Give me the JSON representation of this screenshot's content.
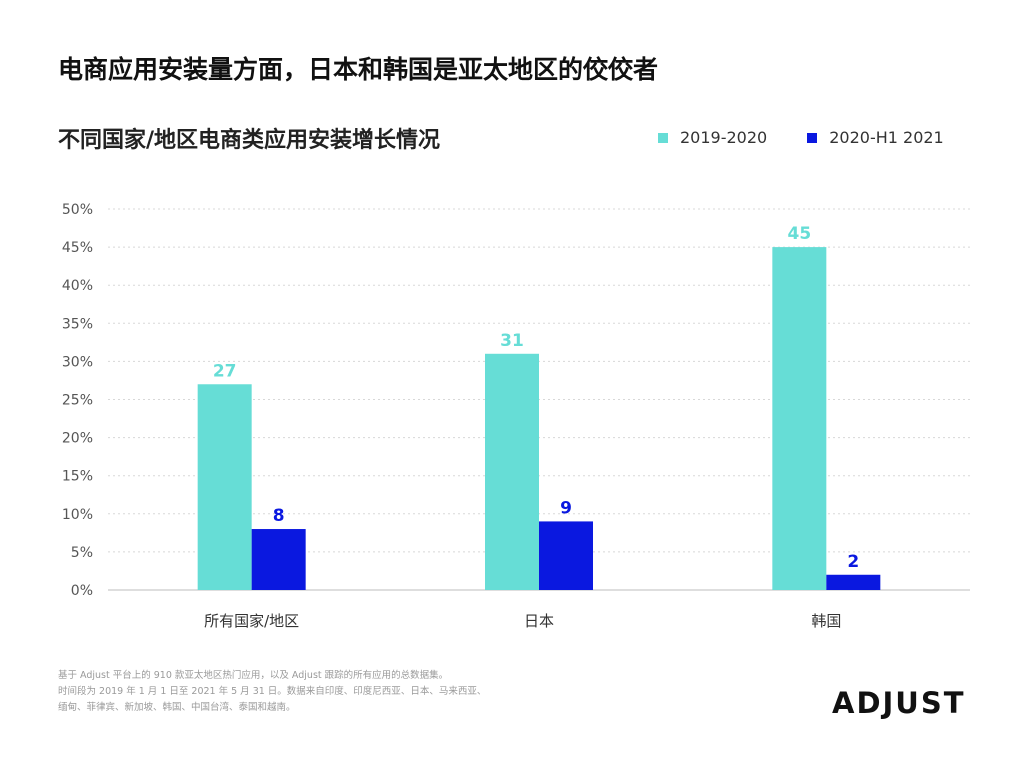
{
  "headline": "电商应用安装量方面，日本和韩国是亚太地区的佼佼者",
  "chart_data": {
    "type": "bar",
    "title": "不同国家/地区电商类应用安装增长情况",
    "categories": [
      "所有国家/地区",
      "日本",
      "韩国"
    ],
    "series": [
      {
        "name": "2019-2020",
        "values": [
          27,
          31,
          45
        ],
        "color": "#66DDD6"
      },
      {
        "name": "2020-H1 2021",
        "values": [
          8,
          9,
          2
        ],
        "color": "#0A18E0"
      }
    ],
    "ylim": [
      0,
      50
    ],
    "yticks": [
      "0%",
      "5%",
      "10%",
      "15%",
      "20%",
      "25%",
      "30%",
      "35%",
      "40%",
      "45%",
      "50%"
    ],
    "grid": true,
    "legend_position": "top-right",
    "xlabel": "",
    "ylabel": ""
  },
  "footnote": [
    "基于 Adjust 平台上的 910 款亚太地区热门应用，以及 Adjust 跟踪的所有应用的总数据集。",
    "时间段为 2019 年 1 月 1 日至 2021 年 5 月 31 日。数据来自印度、印度尼西亚、日本、马来西亚、",
    "缅甸、菲律宾、新加坡、韩国、中国台湾、泰国和越南。"
  ],
  "logo": "ADJUST"
}
